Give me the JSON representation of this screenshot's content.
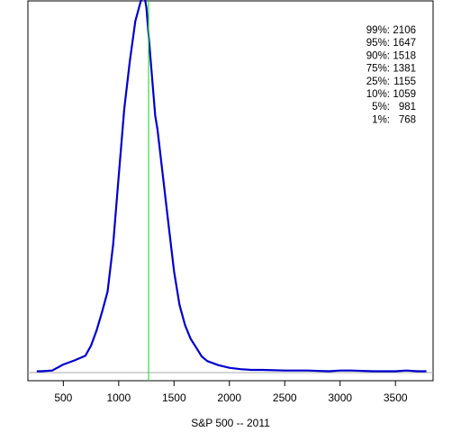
{
  "chart_data": {
    "type": "line",
    "title": "",
    "xlabel": "S&P 500 -- 2011",
    "ylabel": "",
    "xlim": [
      180,
      3840
    ],
    "ylim": [
      -0.00012,
      0.0055
    ],
    "x_ticks": [
      500,
      1000,
      1500,
      2000,
      2500,
      3000,
      3500
    ],
    "x_tick_labels": [
      "500",
      "1000",
      "1500",
      "2000",
      "2500",
      "3000",
      "3500"
    ],
    "y_ticks_shown": false,
    "grid": false,
    "legend": "none",
    "colors": {
      "density": "#0000cc",
      "marker": "#33dd33",
      "baseline": "#aaaaaa",
      "axes": "#000000"
    },
    "series": [
      {
        "x": [
          260,
          300,
          400,
          500,
          600,
          700,
          750,
          800,
          850,
          900,
          950,
          1000,
          1050,
          1100,
          1150,
          1200,
          1230,
          1250,
          1270,
          1300,
          1330,
          1350,
          1400,
          1450,
          1500,
          1550,
          1600,
          1650,
          1700,
          1750,
          1800,
          1900,
          2000,
          2100,
          2200,
          2300,
          2500,
          2700,
          2900,
          3000,
          3100,
          3300,
          3500,
          3600,
          3700,
          3780
        ],
        "y": [
          2e-05,
          2e-05,
          3e-05,
          0.00012,
          0.00018,
          0.00025,
          0.0004,
          0.00062,
          0.0009,
          0.0012,
          0.0019,
          0.0029,
          0.0039,
          0.0046,
          0.0052,
          0.0055,
          0.0056,
          0.0054,
          0.005,
          0.0044,
          0.0038,
          0.0036,
          0.0029,
          0.0022,
          0.0015,
          0.001,
          0.0007,
          0.0005,
          0.00037,
          0.00024,
          0.00017,
          0.00011,
          7e-05,
          5e-05,
          4e-05,
          4e-05,
          3e-05,
          3e-05,
          2e-05,
          3e-05,
          3e-05,
          2e-05,
          2e-05,
          3e-05,
          2e-05,
          2e-05
        ]
      }
    ],
    "reference_line_x": 1270,
    "annotations": [
      {
        "pct": "99%:",
        "val": "2106"
      },
      {
        "pct": "95%:",
        "val": "1647"
      },
      {
        "pct": "90%:",
        "val": "1518"
      },
      {
        "pct": "75%:",
        "val": "1381"
      },
      {
        "pct": "25%:",
        "val": "1155"
      },
      {
        "pct": "10%:",
        "val": "1059"
      },
      {
        "pct": "5%:",
        "val": "981"
      },
      {
        "pct": "1%:",
        "val": "768"
      }
    ]
  }
}
